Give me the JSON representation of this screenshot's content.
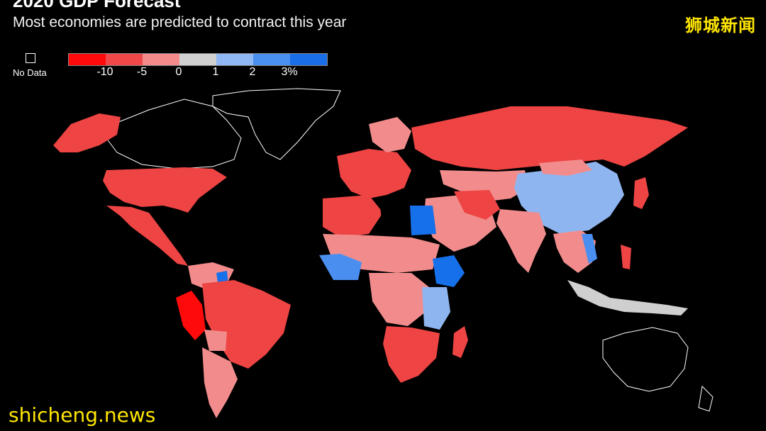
{
  "header": {
    "title_partial": "2020 GDP Forecast",
    "subtitle": "Most economies are predicted to contract this year"
  },
  "watermarks": {
    "cn": "狮城新闻",
    "en": "shicheng.news"
  },
  "legend": {
    "no_data_label": "No Data",
    "scale_colors": [
      "#ff0a0a",
      "#f04848",
      "#f58a8a",
      "#d0d0d0",
      "#8fb8f5",
      "#4a90f0",
      "#1a6ee8"
    ],
    "tick_labels": [
      "-10",
      "-5",
      "0",
      "1",
      "2",
      "3%"
    ]
  },
  "colors": {
    "deep_red": "#ff0a0a",
    "red": "#ee4444",
    "pink": "#f28c8c",
    "gray": "#cfcfcf",
    "light_blue": "#8fb5f0",
    "blue": "#4a8ff0",
    "bright_blue": "#1670ea",
    "no_data_outline": "#ffffff"
  }
}
